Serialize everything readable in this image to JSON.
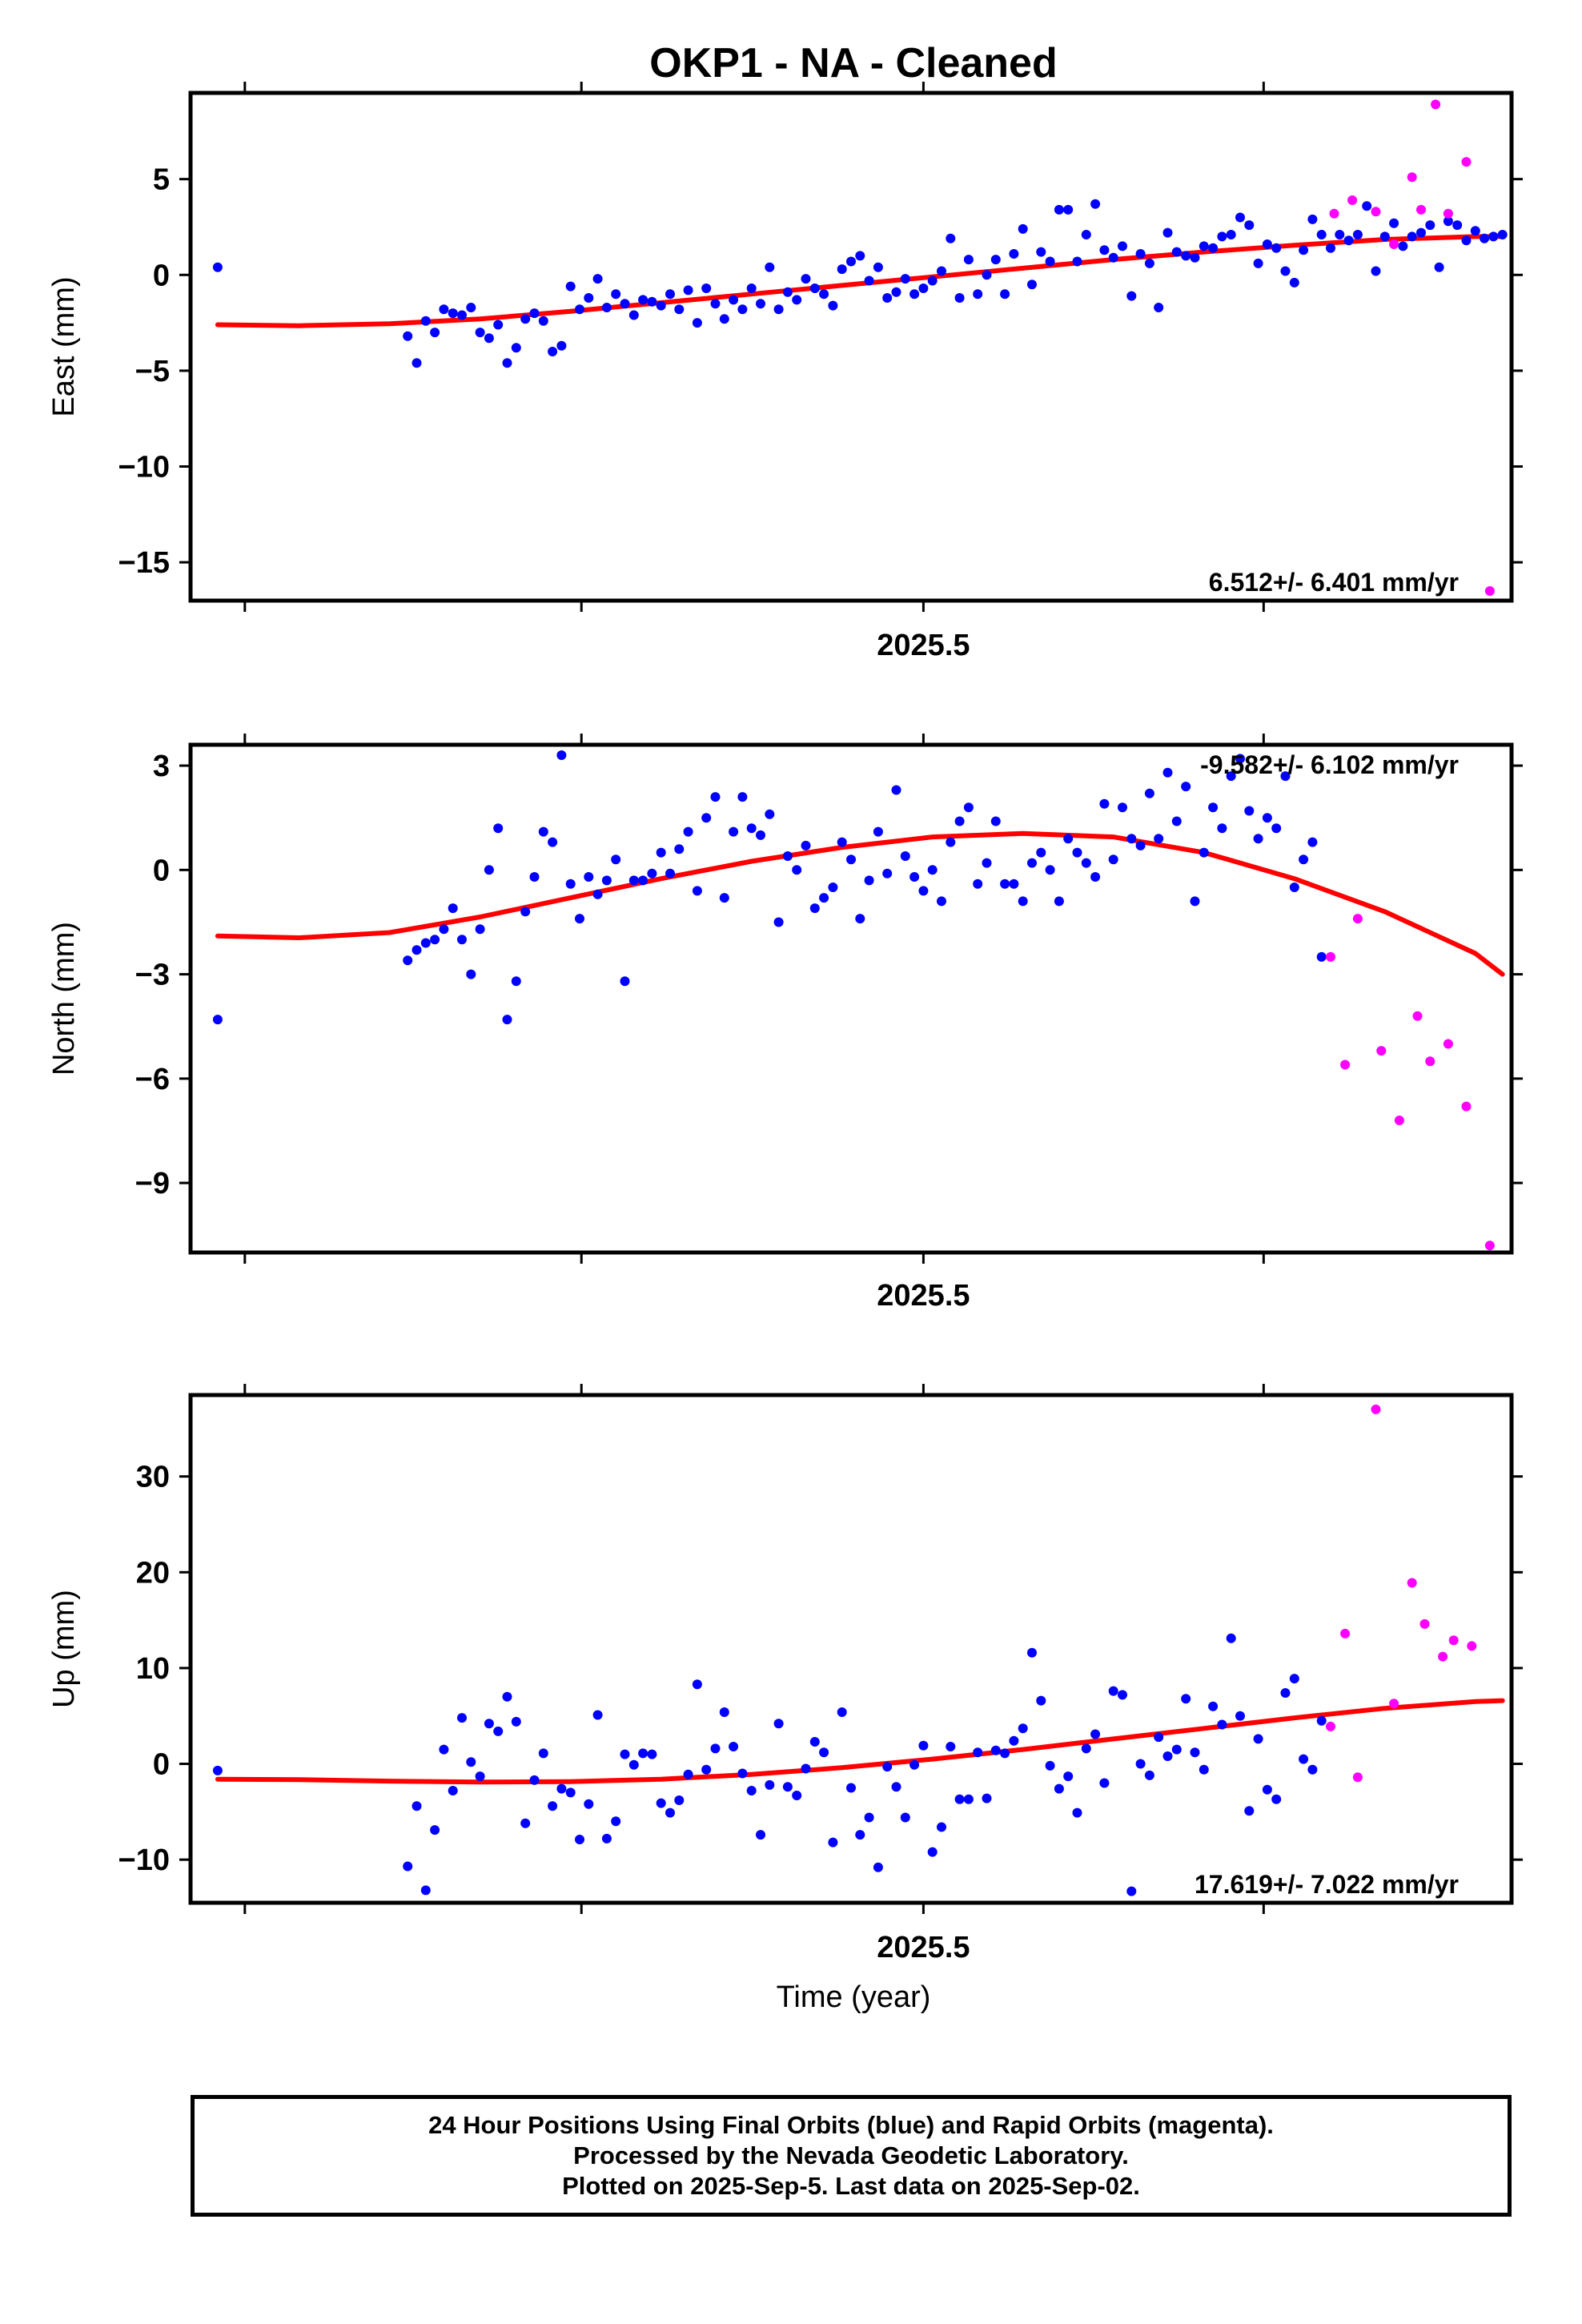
{
  "title": "OKP1  - NA - Cleaned",
  "xlabel": "Time (year)",
  "footer": [
    "24 Hour Positions Using Final Orbits (blue) and Rapid Orbits (magenta).",
    "Processed by the Nevada Geodetic Laboratory.",
    "Plotted on 2025-Sep-5. Last data on 2025-Sep-02."
  ],
  "colors": {
    "final": "#0000ff",
    "rapid": "#ff00ff",
    "fit": "#ff0000"
  },
  "chart_data": [
    {
      "type": "scatter",
      "ylabel": "East (mm)",
      "xlim": [
        2024.94,
        2025.67
      ],
      "ylim": [
        -17,
        9.5
      ],
      "xticks": [
        2025.5
      ],
      "xtick_labels": [
        "2025.5"
      ],
      "yticks": [
        5,
        0,
        -5,
        -10,
        -15
      ],
      "ytick_labels": [
        "5",
        "0",
        "−5",
        "−10",
        "−15"
      ],
      "rate_label": "6.512+/- 6.401 mm/yr",
      "rate_position": "bottom-right",
      "final": {
        "x": [
          2024.955,
          2025.06,
          2025.065,
          2025.07,
          2025.075,
          2025.08,
          2025.085,
          2025.09,
          2025.095,
          2025.1,
          2025.105,
          2025.11,
          2025.115,
          2025.12,
          2025.125,
          2025.13,
          2025.135,
          2025.14,
          2025.145,
          2025.15,
          2025.155,
          2025.16,
          2025.165,
          2025.17,
          2025.175,
          2025.18,
          2025.185,
          2025.19,
          2025.195,
          2025.2,
          2025.205,
          2025.21,
          2025.215,
          2025.22,
          2025.225,
          2025.23,
          2025.235,
          2025.24,
          2025.245,
          2025.25,
          2025.255,
          2025.26,
          2025.265,
          2025.27,
          2025.275,
          2025.28,
          2025.285,
          2025.29,
          2025.295,
          2025.3,
          2025.305,
          2025.31,
          2025.315,
          2025.32,
          2025.325,
          2025.33,
          2025.335,
          2025.34,
          2025.345,
          2025.35,
          2025.355,
          2025.36,
          2025.365,
          2025.37,
          2025.375,
          2025.38,
          2025.385,
          2025.39,
          2025.395,
          2025.4,
          2025.405,
          2025.41,
          2025.415,
          2025.42,
          2025.425,
          2025.43,
          2025.435,
          2025.44,
          2025.445,
          2025.45,
          2025.455,
          2025.46,
          2025.465,
          2025.47,
          2025.475,
          2025.48,
          2025.485,
          2025.49,
          2025.495,
          2025.5,
          2025.505,
          2025.51,
          2025.515,
          2025.52,
          2025.525,
          2025.53,
          2025.535,
          2025.54,
          2025.545,
          2025.55,
          2025.555,
          2025.56,
          2025.565,
          2025.57,
          2025.575,
          2025.58,
          2025.585,
          2025.59,
          2025.595,
          2025.6,
          2025.605,
          2025.61,
          2025.615,
          2025.62,
          2025.625,
          2025.63,
          2025.635,
          2025.64,
          2025.645,
          2025.65,
          2025.655,
          2025.66,
          2025.665
        ],
        "y": [
          0.4,
          -3.2,
          -4.6,
          -2.4,
          -3.0,
          -1.8,
          -2.0,
          -2.1,
          -1.7,
          -3.0,
          -3.3,
          -2.6,
          -4.6,
          -3.8,
          -2.3,
          -2.0,
          -2.4,
          -4.0,
          -3.7,
          -0.6,
          -1.8,
          -1.2,
          -0.2,
          -1.7,
          -1.0,
          -1.5,
          -2.1,
          -1.3,
          -1.4,
          -1.6,
          -1.0,
          -1.8,
          -0.8,
          -2.5,
          -0.7,
          -1.5,
          -2.3,
          -1.3,
          -1.8,
          -0.7,
          -1.5,
          0.4,
          -1.8,
          -0.9,
          -1.3,
          -0.2,
          -0.7,
          -1.0,
          -1.6,
          0.3,
          0.7,
          1.0,
          -0.3,
          0.4,
          -1.2,
          -0.9,
          -0.2,
          -1.0,
          -0.7,
          -0.3,
          0.2,
          1.9,
          -1.2,
          0.8,
          -1.0,
          0.0,
          0.8,
          -1.0,
          1.1,
          2.4,
          -0.5,
          1.2,
          0.7,
          3.4,
          3.4,
          0.7,
          2.1,
          3.7,
          1.3,
          0.9,
          1.5,
          -1.1,
          1.1,
          0.6,
          -1.7,
          2.2,
          1.2,
          1.0,
          0.9,
          1.5,
          1.4,
          2.0,
          2.1,
          3.0,
          2.6,
          0.6,
          1.6,
          1.4,
          0.2,
          -0.4,
          1.3,
          2.9,
          2.1,
          1.4,
          2.1,
          1.8,
          2.1,
          3.6,
          0.2,
          2.0,
          2.7,
          1.5,
          2.0,
          2.2,
          2.6,
          0.4,
          2.8,
          2.6,
          1.8,
          2.3,
          1.9,
          2.0,
          2.1
        ],
        "note": ""
      },
      "rapid": {
        "x": [
          2025.572,
          2025.582,
          2025.595,
          2025.605,
          2025.615,
          2025.62,
          2025.628,
          2025.635,
          2025.645,
          2025.658
        ],
        "y": [
          3.2,
          3.9,
          3.3,
          1.6,
          5.1,
          3.4,
          8.9,
          3.2,
          5.9,
          -16.5
        ]
      },
      "fit": {
        "x": [
          2024.955,
          2025.0,
          2025.05,
          2025.1,
          2025.15,
          2025.2,
          2025.25,
          2025.3,
          2025.35,
          2025.4,
          2025.45,
          2025.5,
          2025.55,
          2025.6,
          2025.65,
          2025.665
        ],
        "y": [
          -2.6,
          -2.65,
          -2.55,
          -2.3,
          -1.9,
          -1.45,
          -1.0,
          -0.55,
          -0.1,
          0.35,
          0.8,
          1.2,
          1.55,
          1.85,
          2.0,
          2.0
        ]
      }
    },
    {
      "type": "scatter",
      "ylabel": "North (mm)",
      "xlim": [
        2024.94,
        2025.67
      ],
      "ylim": [
        -11,
        3.6
      ],
      "xticks": [
        2025.5
      ],
      "xtick_labels": [
        "2025.5"
      ],
      "yticks": [
        3,
        0,
        -3,
        -6,
        -9
      ],
      "ytick_labels": [
        "3",
        "0",
        "−3",
        "−6",
        "−9"
      ],
      "rate_label": "-9.582+/- 6.102 mm/yr",
      "rate_position": "top-right",
      "final": {
        "x": [
          2024.955,
          2025.06,
          2025.065,
          2025.07,
          2025.075,
          2025.08,
          2025.085,
          2025.09,
          2025.095,
          2025.1,
          2025.105,
          2025.11,
          2025.115,
          2025.12,
          2025.125,
          2025.13,
          2025.135,
          2025.14,
          2025.145,
          2025.15,
          2025.155,
          2025.16,
          2025.165,
          2025.17,
          2025.175,
          2025.18,
          2025.185,
          2025.19,
          2025.195,
          2025.2,
          2025.205,
          2025.21,
          2025.215,
          2025.22,
          2025.225,
          2025.23,
          2025.235,
          2025.24,
          2025.245,
          2025.25,
          2025.255,
          2025.26,
          2025.265,
          2025.27,
          2025.275,
          2025.28,
          2025.285,
          2025.29,
          2025.295,
          2025.3,
          2025.305,
          2025.31,
          2025.315,
          2025.32,
          2025.325,
          2025.33,
          2025.335,
          2025.34,
          2025.345,
          2025.35,
          2025.355,
          2025.36,
          2025.365,
          2025.37,
          2025.375,
          2025.38,
          2025.385,
          2025.39,
          2025.395,
          2025.4,
          2025.405,
          2025.41,
          2025.415,
          2025.42,
          2025.425,
          2025.43,
          2025.435,
          2025.44,
          2025.445,
          2025.45,
          2025.455,
          2025.46,
          2025.465,
          2025.47,
          2025.475,
          2025.48,
          2025.485,
          2025.49,
          2025.495,
          2025.5,
          2025.505,
          2025.51,
          2025.515,
          2025.52,
          2025.525,
          2025.53,
          2025.535,
          2025.54,
          2025.545,
          2025.55,
          2025.555,
          2025.56,
          2025.565
        ],
        "y": [
          -4.3,
          -2.6,
          -2.3,
          -2.1,
          -2.0,
          -1.7,
          -1.1,
          -2.0,
          -3.0,
          -1.7,
          0.0,
          1.2,
          -4.3,
          -3.2,
          -1.2,
          -0.2,
          1.1,
          0.8,
          3.3,
          -0.4,
          -1.4,
          -0.2,
          -0.7,
          -0.3,
          0.3,
          -3.2,
          -0.3,
          -0.3,
          -0.1,
          0.5,
          -0.1,
          0.6,
          1.1,
          -0.6,
          1.5,
          2.1,
          -0.8,
          1.1,
          2.1,
          1.2,
          1.0,
          1.6,
          -1.5,
          0.4,
          0.0,
          0.7,
          -1.1,
          -0.8,
          -0.5,
          0.8,
          0.3,
          -1.4,
          -0.3,
          1.1,
          -0.1,
          2.3,
          0.4,
          -0.2,
          -0.6,
          0.0,
          -0.9,
          0.8,
          1.4,
          1.8,
          -0.4,
          0.2,
          1.4,
          -0.4,
          -0.4,
          -0.9,
          0.2,
          0.5,
          0.0,
          -0.9,
          0.9,
          0.5,
          0.2,
          -0.2,
          1.9,
          0.3,
          1.8,
          0.9,
          0.7,
          2.2,
          0.9,
          2.8,
          1.4,
          2.4,
          -0.9,
          0.5,
          1.8,
          1.2,
          2.7,
          3.2,
          1.7,
          0.9,
          1.5,
          1.2,
          2.7,
          -0.5,
          0.3,
          0.8,
          -2.5
        ],
        "note": ""
      },
      "rapid": {
        "x": [
          2025.57,
          2025.578,
          2025.585,
          2025.598,
          2025.608,
          2025.618,
          2025.625,
          2025.635,
          2025.645,
          2025.658
        ],
        "y": [
          -2.5,
          -5.6,
          -1.4,
          -5.2,
          -7.2,
          -4.2,
          -5.5,
          -5.0,
          -6.8,
          -10.8
        ]
      },
      "fit": {
        "x": [
          2024.955,
          2025.0,
          2025.05,
          2025.1,
          2025.15,
          2025.2,
          2025.25,
          2025.3,
          2025.35,
          2025.4,
          2025.45,
          2025.5,
          2025.55,
          2025.6,
          2025.65,
          2025.665
        ],
        "y": [
          -1.9,
          -1.95,
          -1.8,
          -1.35,
          -0.8,
          -0.25,
          0.25,
          0.65,
          0.95,
          1.05,
          0.95,
          0.5,
          -0.25,
          -1.2,
          -2.4,
          -3.0
        ]
      }
    },
    {
      "type": "scatter",
      "ylabel": "Up (mm)",
      "xlim": [
        2024.94,
        2025.67
      ],
      "ylim": [
        -14.5,
        38.5
      ],
      "xticks": [
        2025.5
      ],
      "xtick_labels": [
        "2025.5"
      ],
      "yticks": [
        30,
        20,
        10,
        0,
        -10
      ],
      "ytick_labels": [
        "30",
        "20",
        "10",
        "0",
        "−10"
      ],
      "rate_label": "17.619+/- 7.022 mm/yr",
      "rate_position": "bottom-right",
      "final": {
        "x": [
          2024.955,
          2025.06,
          2025.065,
          2025.07,
          2025.075,
          2025.08,
          2025.085,
          2025.09,
          2025.095,
          2025.1,
          2025.105,
          2025.11,
          2025.115,
          2025.12,
          2025.125,
          2025.13,
          2025.135,
          2025.14,
          2025.145,
          2025.15,
          2025.155,
          2025.16,
          2025.165,
          2025.17,
          2025.175,
          2025.18,
          2025.185,
          2025.19,
          2025.195,
          2025.2,
          2025.205,
          2025.21,
          2025.215,
          2025.22,
          2025.225,
          2025.23,
          2025.235,
          2025.24,
          2025.245,
          2025.25,
          2025.255,
          2025.26,
          2025.265,
          2025.27,
          2025.275,
          2025.28,
          2025.285,
          2025.29,
          2025.295,
          2025.3,
          2025.305,
          2025.31,
          2025.315,
          2025.32,
          2025.325,
          2025.33,
          2025.335,
          2025.34,
          2025.345,
          2025.35,
          2025.355,
          2025.36,
          2025.365,
          2025.37,
          2025.375,
          2025.38,
          2025.385,
          2025.39,
          2025.395,
          2025.4,
          2025.405,
          2025.41,
          2025.415,
          2025.42,
          2025.425,
          2025.43,
          2025.435,
          2025.44,
          2025.445,
          2025.45,
          2025.455,
          2025.46,
          2025.465,
          2025.47,
          2025.475,
          2025.48,
          2025.485,
          2025.49,
          2025.495,
          2025.5,
          2025.505,
          2025.51,
          2025.515,
          2025.52,
          2025.525,
          2025.53,
          2025.535,
          2025.54,
          2025.545,
          2025.55,
          2025.555,
          2025.56,
          2025.565
        ],
        "y": [
          -0.7,
          -10.7,
          -4.4,
          -13.2,
          -6.9,
          1.5,
          -2.8,
          4.8,
          0.2,
          -1.3,
          4.2,
          3.4,
          7.0,
          4.4,
          -6.2,
          -1.7,
          1.1,
          -4.4,
          -2.6,
          -3.0,
          -7.9,
          -4.2,
          5.1,
          -7.8,
          -6.0,
          1.0,
          -0.1,
          1.1,
          1.0,
          -4.1,
          -5.1,
          -3.8,
          -1.1,
          8.3,
          -0.6,
          1.6,
          5.4,
          1.8,
          -1.0,
          -2.8,
          -7.4,
          -2.2,
          4.2,
          -2.4,
          -3.3,
          -0.5,
          2.3,
          1.2,
          -8.2,
          5.4,
          -2.5,
          -7.4,
          -5.6,
          -10.8,
          -0.3,
          -2.4,
          -5.6,
          -0.1,
          1.9,
          -9.2,
          -6.6,
          1.8,
          -3.7,
          -3.7,
          1.2,
          -3.6,
          1.4,
          1.1,
          2.4,
          3.7,
          11.6,
          6.6,
          -0.2,
          -2.6,
          -1.3,
          -5.1,
          1.6,
          3.1,
          -2.0,
          7.6,
          7.2,
          -13.3,
          0.0,
          -1.2,
          2.8,
          0.8,
          1.5,
          6.8,
          1.2,
          -0.6,
          6.0,
          4.1,
          13.1,
          5.0,
          -4.9,
          2.6,
          -2.7,
          -3.7,
          7.4,
          8.9,
          0.5,
          -0.6,
          4.5
        ]
      },
      "rapid": {
        "x": [
          2025.57,
          2025.578,
          2025.585,
          2025.595,
          2025.605,
          2025.615,
          2025.622,
          2025.632,
          2025.638,
          2025.648
        ],
        "y": [
          3.9,
          13.6,
          -1.4,
          37.0,
          6.3,
          18.9,
          14.6,
          11.2,
          12.9,
          12.3
        ]
      },
      "fit": {
        "x": [
          2024.955,
          2025.0,
          2025.05,
          2025.1,
          2025.15,
          2025.2,
          2025.25,
          2025.3,
          2025.35,
          2025.4,
          2025.45,
          2025.5,
          2025.55,
          2025.6,
          2025.65,
          2025.665
        ],
        "y": [
          -1.6,
          -1.65,
          -1.8,
          -1.9,
          -1.85,
          -1.6,
          -1.1,
          -0.4,
          0.5,
          1.5,
          2.6,
          3.7,
          4.8,
          5.8,
          6.5,
          6.6
        ]
      }
    }
  ]
}
